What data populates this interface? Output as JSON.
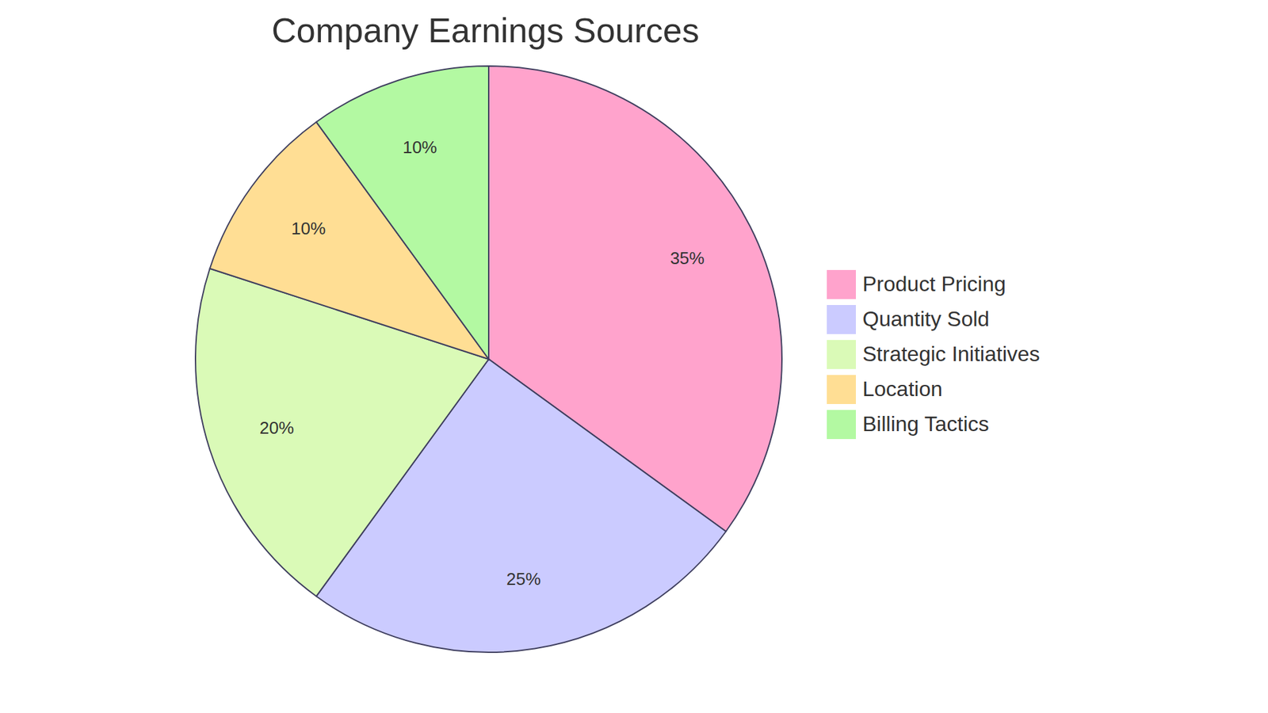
{
  "chart_data": {
    "type": "pie",
    "title": "Company Earnings Sources",
    "categories": [
      "Product Pricing",
      "Quantity Sold",
      "Strategic Initiatives",
      "Location",
      "Billing Tactics"
    ],
    "values": [
      35,
      25,
      20,
      10,
      10
    ],
    "value_labels": [
      "35%",
      "25%",
      "20%",
      "10%",
      "10%"
    ],
    "colors": [
      "#ffa3cc",
      "#cbcbff",
      "#dafab7",
      "#ffde94",
      "#b3f9a2"
    ],
    "data_labels": true,
    "legend": "right"
  }
}
